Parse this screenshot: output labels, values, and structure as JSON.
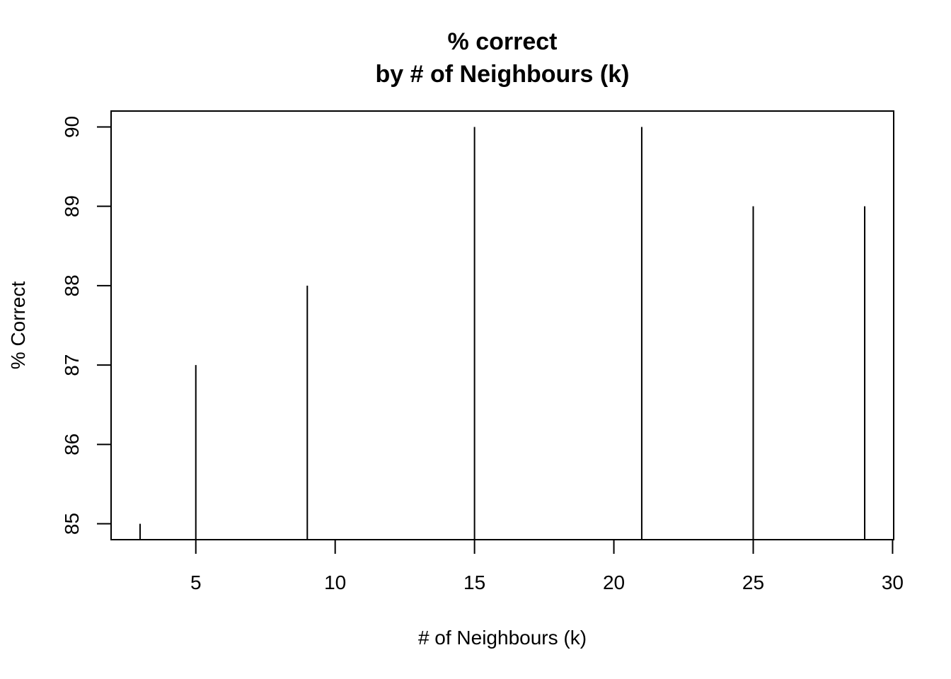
{
  "chart_data": {
    "type": "line",
    "plot_style": "vertical-lines (histogram-like)",
    "title": "% correct",
    "subtitle": "by # of Neighbours (k)",
    "xlabel": "# of Neighbours (k)",
    "ylabel": "% Correct",
    "x": [
      3,
      5,
      9,
      15,
      21,
      25,
      29
    ],
    "y": [
      85,
      87,
      88,
      90,
      90,
      89,
      89
    ],
    "xlim": [
      1.96,
      30.04
    ],
    "ylim": [
      84.8,
      90.2
    ],
    "xticks": [
      5,
      10,
      15,
      20,
      25,
      30
    ],
    "yticks": [
      85,
      86,
      87,
      88,
      89,
      90
    ],
    "grid": false,
    "color": "#000000"
  }
}
